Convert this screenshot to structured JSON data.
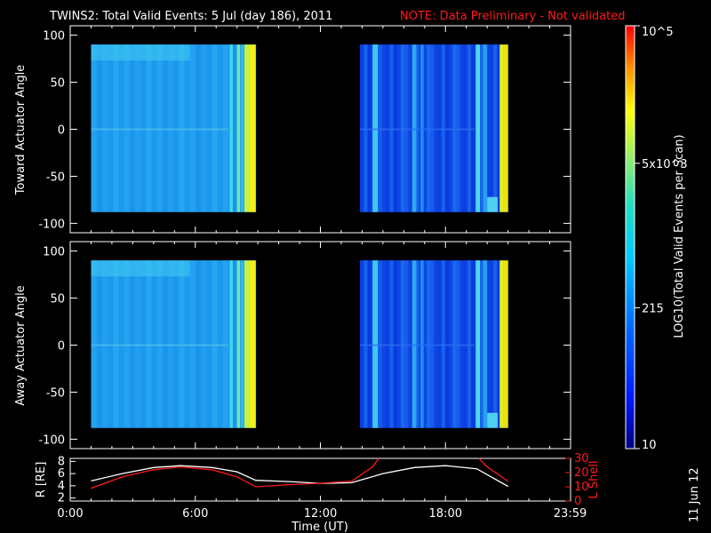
{
  "header": {
    "title": "TWINS2: Total Valid Events:  5 Jul (day 186), 2011",
    "note": "NOTE: Data Preliminary - Not validated"
  },
  "footer": {
    "date_stamp": "11 Jun 12"
  },
  "colorbar": {
    "label": "LOG10(Total Valid Events per Scan)",
    "ticks": [
      "10",
      "215",
      "5x10^3",
      "10^5"
    ],
    "tick_values": [
      10,
      215,
      5000,
      100000
    ]
  },
  "chart_data": [
    {
      "type": "heatmap",
      "name": "toward",
      "ylabel": "Toward Actuator Angle",
      "ylim": [
        -110,
        110
      ],
      "yticks": [
        100,
        50,
        0,
        -50,
        -100
      ],
      "xlim_hours": [
        0,
        24
      ],
      "data_extent_deg": [
        -88,
        90
      ],
      "segments_hours": [
        [
          1.0,
          8.9
        ],
        [
          13.9,
          21.0
        ]
      ]
    },
    {
      "type": "heatmap",
      "name": "away",
      "ylabel": "Away Actuator Angle",
      "ylim": [
        -110,
        110
      ],
      "yticks": [
        100,
        50,
        0,
        -50,
        -100
      ],
      "xlim_hours": [
        0,
        24
      ],
      "data_extent_deg": [
        -88,
        90
      ],
      "segments_hours": [
        [
          1.0,
          8.9
        ],
        [
          13.9,
          21.0
        ]
      ]
    },
    {
      "type": "line",
      "name": "orbit",
      "xlabel": "Time (UT)",
      "xticks": [
        "0:00",
        "6:00",
        "12:00",
        "18:00",
        "23:59"
      ],
      "xtick_hours": [
        0,
        6,
        12,
        18,
        23.98
      ],
      "left_axis": {
        "label": "R [RE]",
        "ticks": [
          "2",
          "4",
          "6",
          "8"
        ],
        "ylim": [
          1.5,
          8.5
        ]
      },
      "right_axis": {
        "label": "L Shell",
        "ticks": [
          "0",
          "10",
          "20",
          "30"
        ],
        "ylim": [
          0,
          30
        ]
      },
      "series": [
        {
          "axis": "left",
          "color": "#ffffff",
          "x": [
            1.0,
            2.5,
            4.0,
            5.3,
            6.8,
            8.0,
            8.9,
            10.5,
            12.0,
            13.5,
            15.0,
            16.5,
            18.0,
            19.5,
            21.0
          ],
          "y": [
            4.8,
            6.0,
            7.0,
            7.3,
            7.0,
            6.3,
            4.9,
            4.7,
            4.4,
            4.5,
            6.0,
            7.0,
            7.3,
            6.8,
            3.9
          ]
        },
        {
          "axis": "right",
          "color": "#ff1a1a",
          "x": [
            1.0,
            2.5,
            4.0,
            5.3,
            6.8,
            8.0,
            8.9,
            10.5,
            12.0,
            13.5,
            14.5,
            14.8
          ],
          "y": [
            9,
            17,
            22,
            24,
            22,
            17,
            10,
            11.5,
            12.5,
            14,
            24,
            30
          ]
        },
        {
          "axis": "right",
          "color": "#ff1a1a",
          "x": [
            19.6,
            20.0,
            21.0
          ],
          "y": [
            30,
            24,
            14
          ]
        }
      ]
    }
  ]
}
